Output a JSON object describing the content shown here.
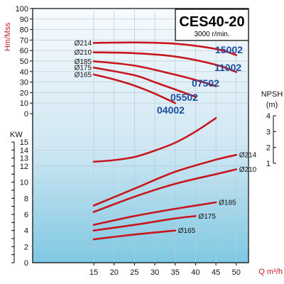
{
  "chart_data": {
    "type": "line",
    "title": "CES40-20",
    "subtitle": "3000 r/min.",
    "xlabel": "Q m³/h",
    "x_ticks": [
      15,
      20,
      25,
      30,
      35,
      40,
      45,
      50
    ],
    "xlim": [
      0,
      53
    ],
    "grid": true,
    "head": {
      "ylabel": "Hm/Mss",
      "ylim": [
        0,
        100
      ],
      "y_ticks": [
        0,
        10,
        20,
        30,
        40,
        50,
        60,
        70,
        80,
        90,
        100
      ],
      "series": [
        {
          "name": "Ø214",
          "model": "15002",
          "x": [
            15,
            25,
            35,
            45,
            50
          ],
          "y": [
            67.3,
            67.7,
            66.5,
            61.5,
            55.7
          ]
        },
        {
          "name": "Ø210",
          "model": "11002",
          "x": [
            15,
            25,
            35,
            45,
            50
          ],
          "y": [
            58.3,
            57.5,
            54.3,
            46.5,
            39.5
          ]
        },
        {
          "name": "Ø185",
          "model": "07502",
          "x": [
            15,
            25,
            35,
            40,
            45
          ],
          "y": [
            49.8,
            45.7,
            37.0,
            32.0,
            26.0
          ]
        },
        {
          "name": "Ø175",
          "model": "05502",
          "x": [
            15,
            25,
            30,
            35,
            40
          ],
          "y": [
            43.8,
            36.5,
            29.8,
            23.0,
            16.0
          ]
        },
        {
          "name": "Ø165",
          "model": "04002",
          "x": [
            15,
            20,
            25,
            30,
            35
          ],
          "y": [
            37.2,
            32.5,
            26.6,
            19.0,
            10.0
          ]
        }
      ]
    },
    "npsh": {
      "ylabel": "NPSH (m)",
      "ylim": [
        1,
        4
      ],
      "y_ticks": [
        1,
        2,
        3,
        4
      ],
      "x": [
        15,
        20,
        25,
        30,
        35,
        40,
        45
      ],
      "y": [
        1.1,
        1.2,
        1.4,
        1.8,
        2.3,
        3.0,
        3.85
      ]
    },
    "power": {
      "ylabel": "KW",
      "ylim": [
        0,
        15
      ],
      "y_ticks": [
        0,
        2,
        4,
        6,
        8,
        10,
        12,
        13,
        14,
        15
      ],
      "series": [
        {
          "name": "Ø214",
          "x": [
            15,
            25,
            35,
            45,
            50
          ],
          "y": [
            7.1,
            9.2,
            11.3,
            12.8,
            13.4
          ]
        },
        {
          "name": "Ø210",
          "x": [
            15,
            25,
            35,
            45,
            50
          ],
          "y": [
            6.3,
            8.2,
            9.8,
            11.0,
            11.6
          ]
        },
        {
          "name": "Ø185",
          "x": [
            15,
            25,
            35,
            45
          ],
          "y": [
            4.7,
            5.8,
            6.7,
            7.5
          ]
        },
        {
          "name": "Ø175",
          "x": [
            15,
            25,
            35,
            40
          ],
          "y": [
            4.0,
            4.7,
            5.5,
            5.8
          ]
        },
        {
          "name": "Ø165",
          "x": [
            15,
            25,
            35
          ],
          "y": [
            2.9,
            3.5,
            4.0
          ]
        }
      ]
    },
    "colors": {
      "curve": "#c8161d",
      "model_label": "#1b4d9c",
      "axis_title": "#c0182a",
      "plot_fill_top": "#f7fafd",
      "plot_fill_bottom": "#7ec8e3"
    }
  }
}
